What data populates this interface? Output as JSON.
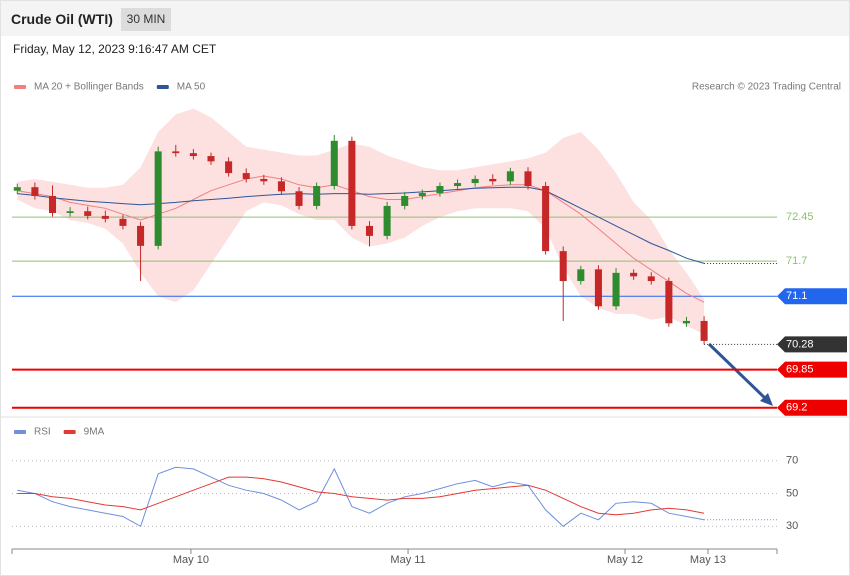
{
  "header": {
    "title": "Crude Oil (WTI)",
    "timeframe": "30 MIN",
    "timestamp": "Friday, May 12, 2023 9:16:47 AM CET"
  },
  "chart_data": [
    {
      "type": "candlestick",
      "source": "Research © 2023 Trading Central",
      "x": [
        0,
        1,
        2,
        3,
        4,
        5,
        6,
        7,
        8,
        9,
        10,
        11,
        12,
        13,
        14,
        15,
        16,
        17,
        18,
        19,
        20,
        21,
        22,
        23,
        24,
        25,
        26,
        27,
        28,
        29,
        30,
        31,
        32,
        33,
        34,
        35,
        36,
        37,
        38,
        39
      ],
      "open": [
        72.9,
        72.96,
        72.81,
        72.52,
        72.55,
        72.47,
        72.42,
        72.3,
        71.96,
        73.57,
        73.54,
        73.49,
        73.4,
        73.2,
        73.1,
        73.06,
        72.89,
        72.64,
        72.98,
        73.75,
        72.3,
        72.13,
        72.64,
        72.81,
        72.86,
        72.98,
        73.03,
        73.1,
        73.06,
        73.23,
        72.98,
        71.87,
        71.36,
        71.56,
        70.93,
        71.5,
        71.44,
        71.36,
        70.64,
        70.68
      ],
      "high": [
        73.02,
        73.04,
        72.99,
        72.62,
        72.63,
        72.56,
        72.49,
        72.37,
        73.65,
        73.68,
        73.61,
        73.55,
        73.47,
        73.28,
        73.17,
        73.13,
        72.96,
        73.04,
        73.85,
        73.82,
        72.38,
        72.71,
        72.88,
        72.92,
        73.04,
        73.09,
        73.16,
        73.18,
        73.29,
        73.3,
        73.05,
        71.95,
        71.62,
        71.63,
        71.58,
        71.56,
        71.51,
        71.42,
        70.75,
        70.76
      ],
      "low": [
        72.84,
        72.75,
        72.46,
        72.46,
        72.41,
        72.36,
        72.24,
        71.36,
        71.9,
        73.48,
        73.43,
        73.34,
        73.14,
        73.04,
        73.0,
        72.83,
        72.58,
        72.58,
        72.92,
        72.24,
        71.95,
        72.07,
        72.58,
        72.75,
        72.8,
        72.92,
        72.97,
        73.0,
        73.0,
        72.92,
        71.81,
        70.68,
        71.3,
        70.87,
        70.87,
        71.38,
        71.3,
        70.58,
        70.58,
        70.28
      ],
      "close": [
        72.96,
        72.81,
        72.52,
        72.55,
        72.47,
        72.42,
        72.3,
        71.96,
        73.57,
        73.54,
        73.49,
        73.4,
        73.2,
        73.1,
        73.06,
        72.89,
        72.64,
        72.98,
        73.75,
        72.3,
        72.13,
        72.64,
        72.81,
        72.86,
        72.98,
        73.03,
        73.1,
        73.06,
        73.23,
        72.98,
        71.87,
        71.36,
        71.56,
        70.93,
        71.5,
        71.44,
        71.36,
        70.64,
        70.68,
        70.34
      ],
      "up_color": "#2e8b2e",
      "down_color": "#c62828",
      "series": [
        {
          "name": "MA 20 + Bollinger Bands",
          "color": "#f08080",
          "band_color": "#fde0e0",
          "values": [
            72.9,
            72.85,
            72.8,
            72.7,
            72.65,
            72.6,
            72.5,
            72.4,
            72.5,
            72.6,
            72.75,
            72.9,
            73.0,
            73.1,
            73.15,
            73.1,
            73.0,
            72.95,
            73.0,
            72.9,
            72.8,
            72.75,
            72.75,
            72.8,
            72.85,
            72.9,
            72.95,
            72.98,
            73.0,
            73.0,
            72.9,
            72.7,
            72.5,
            72.25,
            72.0,
            71.75,
            71.55,
            71.35,
            71.15,
            71.0
          ],
          "upper": [
            73.05,
            73.1,
            73.05,
            73.0,
            72.95,
            72.95,
            73.0,
            73.3,
            73.9,
            74.2,
            74.3,
            74.15,
            73.9,
            73.65,
            73.6,
            73.55,
            73.5,
            73.5,
            73.6,
            73.7,
            73.65,
            73.5,
            73.4,
            73.3,
            73.25,
            73.25,
            73.3,
            73.35,
            73.4,
            73.45,
            73.55,
            73.8,
            73.9,
            73.6,
            73.2,
            72.7,
            72.4,
            71.9,
            71.5,
            71.05
          ],
          "lower": [
            72.75,
            72.6,
            72.55,
            72.4,
            72.35,
            72.25,
            72.0,
            71.5,
            71.1,
            71.0,
            71.2,
            71.65,
            72.1,
            72.55,
            72.7,
            72.65,
            72.5,
            72.4,
            72.4,
            72.1,
            71.95,
            72.0,
            72.1,
            72.3,
            72.45,
            72.55,
            72.6,
            72.6,
            72.6,
            72.55,
            72.25,
            71.6,
            71.1,
            70.9,
            70.8,
            70.8,
            70.7,
            70.75,
            70.6,
            70.45
          ]
        },
        {
          "name": "MA 50",
          "color": "#2f5597",
          "values": [
            72.85,
            72.82,
            72.78,
            72.75,
            72.72,
            72.7,
            72.68,
            72.66,
            72.68,
            72.7,
            72.73,
            72.75,
            72.77,
            72.8,
            72.82,
            72.84,
            72.85,
            72.84,
            72.85,
            72.85,
            72.84,
            72.85,
            72.86,
            72.88,
            72.9,
            72.92,
            72.94,
            72.95,
            72.96,
            72.96,
            72.9,
            72.75,
            72.6,
            72.45,
            72.3,
            72.15,
            72.0,
            71.88,
            71.75,
            71.66
          ]
        }
      ],
      "levels": [
        {
          "value": 72.45,
          "color": "#8dc26f",
          "box": false,
          "width": 1
        },
        {
          "value": 71.7,
          "color": "#8dc26f",
          "box": false,
          "width": 1
        },
        {
          "value": 71.1,
          "color": "#2266ee",
          "box": true,
          "width": 1
        },
        {
          "value": 70.28,
          "color": "#333333",
          "box": true,
          "width": 0
        },
        {
          "value": 69.85,
          "color": "#ee0000",
          "box": true,
          "width": 2
        },
        {
          "value": 69.2,
          "color": "#ee0000",
          "box": true,
          "width": 2
        }
      ],
      "xlim": [
        -0.3,
        43.14
      ],
      "ylim": [
        69.06,
        74.94
      ]
    },
    {
      "type": "line",
      "x": [
        0,
        1,
        2,
        3,
        4,
        5,
        6,
        7,
        8,
        9,
        10,
        11,
        12,
        13,
        14,
        15,
        16,
        17,
        18,
        19,
        20,
        21,
        22,
        23,
        24,
        25,
        26,
        27,
        28,
        29,
        30,
        31,
        32,
        33,
        34,
        35,
        36,
        37,
        38,
        39
      ],
      "series": [
        {
          "name": "RSI",
          "color": "#6f8fdc",
          "values": [
            52,
            50,
            45,
            42,
            40,
            38,
            36,
            30,
            62,
            66,
            65,
            60,
            55,
            52,
            50,
            46,
            40,
            45,
            65,
            42,
            38,
            44,
            48,
            50,
            53,
            56,
            58,
            54,
            57,
            55,
            40,
            30,
            38,
            34,
            44,
            45,
            44,
            38,
            36,
            34
          ]
        },
        {
          "name": "9MA",
          "color": "#e53935",
          "values": [
            50,
            50,
            48,
            47,
            45,
            43,
            42,
            40,
            44,
            48,
            52,
            56,
            60,
            60,
            59,
            57,
            54,
            51,
            50,
            48,
            47,
            46,
            47,
            47,
            48,
            50,
            52,
            53,
            54,
            55,
            52,
            47,
            42,
            38,
            37,
            38,
            40,
            41,
            40,
            38
          ]
        }
      ],
      "xlim": [
        -0.3,
        43.14
      ],
      "ylim": [
        18,
        82
      ],
      "yticks": [
        30,
        50,
        70
      ],
      "grid": true,
      "xticks": [
        {
          "value": 9.86,
          "label": "May 10"
        },
        {
          "value": 22.19,
          "label": "May 11"
        },
        {
          "value": 34.51,
          "label": "May 12"
        },
        {
          "value": 39.22,
          "label": "May 13"
        }
      ]
    }
  ]
}
